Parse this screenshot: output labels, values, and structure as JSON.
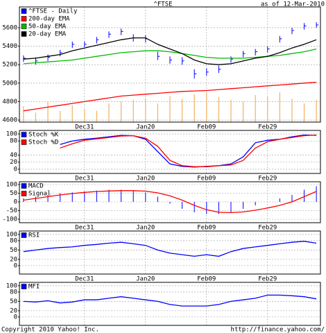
{
  "title": "^FTSE",
  "date_note": "as of 12-Mar-2010",
  "copyright": "Copyright 2010 Yahoo! Inc.",
  "source": "http://finance.yahoo.com/",
  "time_axis": {
    "x": [
      0,
      3,
      6,
      9,
      12,
      15,
      18,
      21,
      24,
      27,
      30,
      33,
      36,
      39,
      42,
      45,
      48,
      51,
      54,
      57,
      60,
      63,
      66,
      69,
      72
    ],
    "xlim": [
      -1,
      73
    ],
    "xticks": [
      {
        "value": 15,
        "label": "Dec31"
      },
      {
        "value": 30,
        "label": "Jan20"
      },
      {
        "value": 45,
        "label": "Feb09"
      },
      {
        "value": 60,
        "label": "Feb29"
      }
    ]
  },
  "chart_data": [
    {
      "type": "stock",
      "ylim": [
        4578,
        5825
      ],
      "yticks": [
        4600,
        4800,
        5000,
        5200,
        5400,
        5600
      ],
      "grid": true,
      "show_dates": true,
      "volume": {
        "color": "#f0b060",
        "values": [
          4750,
          4680,
          4800,
          4700,
          4760,
          4720,
          4700,
          4780,
          4800,
          4820,
          4840,
          4780,
          4860,
          4830,
          4880,
          4900,
          4850,
          4820,
          4800,
          4870,
          4850,
          4900,
          4830,
          4780,
          4820
        ]
      },
      "series": [
        {
          "name": "^FTSE - Daily",
          "color": "#0000ff",
          "style": "hlc",
          "high": [
            5300,
            5280,
            5310,
            5360,
            5450,
            5450,
            5500,
            5560,
            5590,
            5530,
            5520,
            5340,
            5290,
            5280,
            5150,
            5160,
            5190,
            5290,
            5350,
            5370,
            5400,
            5510,
            5600,
            5650,
            5660
          ],
          "low": [
            5230,
            5200,
            5240,
            5290,
            5380,
            5390,
            5430,
            5490,
            5520,
            5450,
            5440,
            5250,
            5210,
            5200,
            5050,
            5080,
            5110,
            5220,
            5280,
            5300,
            5330,
            5440,
            5530,
            5580,
            5600
          ],
          "values": [
            5270,
            5240,
            5280,
            5330,
            5420,
            5420,
            5470,
            5530,
            5560,
            5490,
            5480,
            5290,
            5250,
            5240,
            5100,
            5120,
            5150,
            5260,
            5320,
            5340,
            5370,
            5480,
            5570,
            5620,
            5630
          ]
        },
        {
          "name": "200-day EMA",
          "color": "#ff0000",
          "style": "line",
          "values": [
            4700,
            4720,
            4740,
            4760,
            4780,
            4800,
            4820,
            4840,
            4860,
            4870,
            4880,
            4890,
            4900,
            4910,
            4915,
            4920,
            4930,
            4940,
            4950,
            4960,
            4970,
            4980,
            4990,
            5000,
            5010
          ]
        },
        {
          "name": "50-day EMA",
          "color": "#00bb00",
          "style": "line",
          "values": [
            5210,
            5220,
            5230,
            5240,
            5250,
            5270,
            5290,
            5310,
            5330,
            5340,
            5350,
            5350,
            5340,
            5320,
            5300,
            5280,
            5270,
            5270,
            5270,
            5280,
            5290,
            5300,
            5320,
            5340,
            5370
          ]
        },
        {
          "name": "20-day EMA",
          "color": "#000000",
          "style": "line",
          "values": [
            5260,
            5270,
            5290,
            5310,
            5350,
            5380,
            5410,
            5440,
            5470,
            5490,
            5490,
            5420,
            5370,
            5320,
            5250,
            5210,
            5200,
            5210,
            5240,
            5270,
            5290,
            5330,
            5380,
            5420,
            5470
          ]
        }
      ]
    },
    {
      "type": "line",
      "ylim": [
        -12,
        110
      ],
      "yticks": [
        0,
        20,
        40,
        80,
        100
      ],
      "grid": true,
      "show_dates": true,
      "series": [
        {
          "name": "Stoch %K",
          "color": "#0000ff",
          "style": "line",
          "values": [
            null,
            null,
            null,
            70,
            80,
            85,
            88,
            92,
            96,
            95,
            85,
            50,
            15,
            8,
            6,
            8,
            10,
            15,
            35,
            75,
            82,
            85,
            92,
            97,
            96
          ]
        },
        {
          "name": "Stoch %D",
          "color": "#ff0000",
          "style": "line",
          "values": [
            null,
            null,
            null,
            60,
            72,
            82,
            86,
            90,
            94,
            95,
            88,
            65,
            25,
            10,
            7,
            7,
            10,
            12,
            25,
            60,
            78,
            85,
            90,
            95,
            97
          ]
        }
      ]
    },
    {
      "type": "combo",
      "ylim": [
        -120,
        116
      ],
      "yticks": [
        -100,
        -50,
        0,
        50,
        100
      ],
      "grid": true,
      "show_dates": true,
      "series": [
        {
          "name": "MACD",
          "color": "#0000ff",
          "style": "bar",
          "values": [
            20,
            30,
            40,
            50,
            55,
            60,
            65,
            70,
            70,
            65,
            55,
            30,
            -10,
            -40,
            -60,
            -70,
            -70,
            -60,
            -40,
            -20,
            0,
            20,
            40,
            70,
            90
          ]
        },
        {
          "name": "Signal",
          "color": "#ff0000",
          "style": "line",
          "values": [
            10,
            20,
            30,
            40,
            48,
            55,
            60,
            63,
            65,
            65,
            62,
            52,
            35,
            10,
            -20,
            -45,
            -60,
            -62,
            -58,
            -48,
            -35,
            -20,
            0,
            30,
            60
          ]
        }
      ]
    },
    {
      "type": "line",
      "ylim": [
        -27,
        111
      ],
      "yticks": [
        0,
        20,
        50,
        80,
        100
      ],
      "grid": true,
      "show_dates": true,
      "series": [
        {
          "name": "RSI",
          "color": "#0000ff",
          "style": "line",
          "values": [
            45,
            50,
            55,
            58,
            60,
            65,
            68,
            72,
            75,
            70,
            65,
            50,
            40,
            35,
            30,
            35,
            30,
            45,
            55,
            60,
            65,
            70,
            75,
            78,
            72
          ]
        }
      ]
    },
    {
      "type": "line",
      "ylim": [
        -27,
        111
      ],
      "yticks": [
        0,
        20,
        50,
        80,
        100
      ],
      "grid": true,
      "show_dates": false,
      "series": [
        {
          "name": "MFI",
          "color": "#0000ff",
          "style": "line",
          "values": [
            50,
            48,
            52,
            45,
            48,
            55,
            55,
            60,
            65,
            60,
            55,
            50,
            40,
            35,
            35,
            35,
            40,
            50,
            55,
            60,
            70,
            70,
            68,
            65,
            58
          ]
        }
      ]
    }
  ]
}
